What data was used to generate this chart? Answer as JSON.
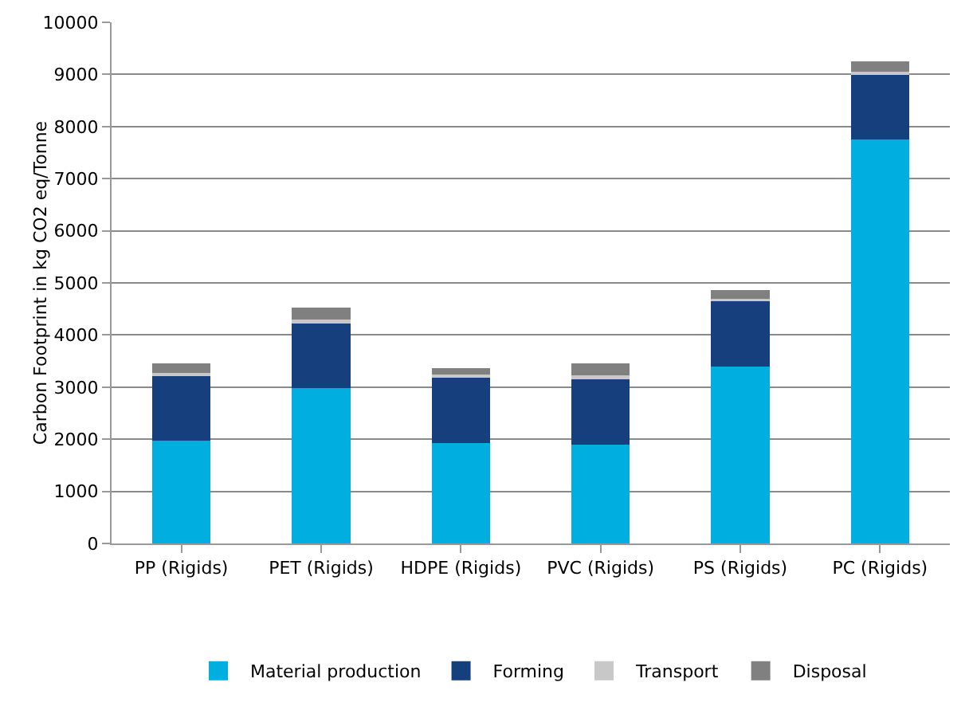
{
  "chart_data": {
    "type": "bar",
    "stacked": true,
    "ylabel": "Carbon Footprint in kg CO2 eq/Tonne",
    "categories": [
      "PP (Rigids)",
      "PET (Rigids)",
      "HDPE (Rigids)",
      "PVC (Rigids)",
      "PS (Rigids)",
      "PC (Rigids)"
    ],
    "series": [
      {
        "name": "Material production",
        "color": "#00aee0",
        "values": [
          1970,
          2980,
          1930,
          1900,
          3400,
          7760
        ]
      },
      {
        "name": "Forming",
        "color": "#153f7d",
        "values": [
          1250,
          1260,
          1270,
          1270,
          1250,
          1250
        ]
      },
      {
        "name": "Transport",
        "color": "#c8c8c8",
        "values": [
          50,
          50,
          40,
          50,
          50,
          40
        ]
      },
      {
        "name": "Disposal",
        "color": "#808080",
        "values": [
          180,
          230,
          130,
          230,
          160,
          200
        ]
      }
    ],
    "ylim": [
      0,
      10000
    ],
    "yticks": [
      0,
      1000,
      2000,
      3000,
      4000,
      5000,
      6000,
      7000,
      8000,
      9000,
      10000
    ],
    "grid": "y",
    "legend": "bottom"
  }
}
